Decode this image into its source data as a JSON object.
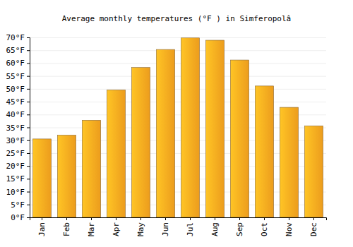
{
  "chart_data": {
    "type": "bar",
    "title": "Average monthly temperatures (°F ) in Simferopolâ",
    "categories": [
      "Jan",
      "Feb",
      "Mar",
      "Apr",
      "May",
      "Jun",
      "Jul",
      "Aug",
      "Sep",
      "Oct",
      "Nov",
      "Dec"
    ],
    "values": [
      30.5,
      32,
      37.8,
      49.6,
      58.3,
      65.3,
      69.8,
      68.9,
      61.2,
      51.1,
      42.8,
      35.6
    ],
    "color": "#f9a51f",
    "ylim": [
      0,
      70
    ],
    "yticks": [
      {
        "value": 0,
        "label": "0°F"
      },
      {
        "value": 5,
        "label": "5°F"
      },
      {
        "value": 10,
        "label": "10°F"
      },
      {
        "value": 15,
        "label": "15°F"
      },
      {
        "value": 20,
        "label": "20°F"
      },
      {
        "value": 25,
        "label": "25°F"
      },
      {
        "value": 30,
        "label": "30°F"
      },
      {
        "value": 35,
        "label": "35°F"
      },
      {
        "value": 40,
        "label": "40°F"
      },
      {
        "value": 45,
        "label": "45°F"
      },
      {
        "value": 50,
        "label": "50°F"
      },
      {
        "value": 55,
        "label": "55°F"
      },
      {
        "value": 60,
        "label": "60°F"
      },
      {
        "value": 65,
        "label": "65°F"
      },
      {
        "value": 70,
        "label": "70°F"
      }
    ],
    "grid": true
  }
}
